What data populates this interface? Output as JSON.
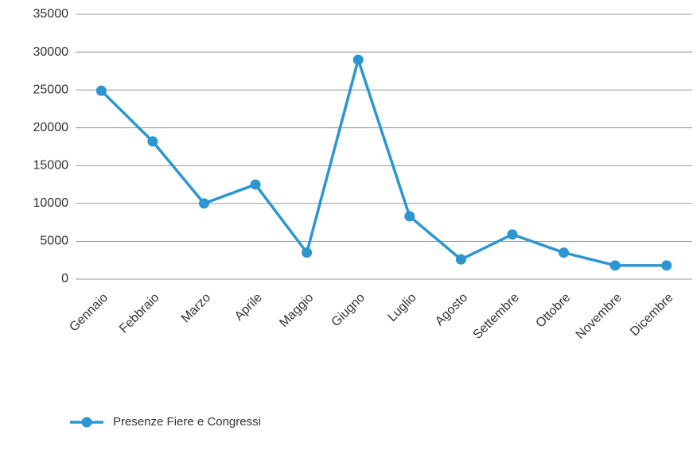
{
  "chart_data": {
    "type": "line",
    "categories": [
      "Gennaio",
      "Febbraio",
      "Marzo",
      "Aprile",
      "Maggio",
      "Giugno",
      "Luglio",
      "Agosto",
      "Settembre",
      "Ottobre",
      "Novembre",
      "Dicembre"
    ],
    "series": [
      {
        "name": "Presenze Fiere e Congressi",
        "color": "#2b96d2",
        "values": [
          24900,
          18200,
          10000,
          12500,
          3500,
          29000,
          8300,
          2600,
          5900,
          3500,
          1800,
          1800
        ]
      }
    ],
    "ylim": [
      0,
      35000
    ],
    "yticks": [
      0,
      5000,
      10000,
      15000,
      20000,
      25000,
      30000,
      35000
    ],
    "grid": true,
    "legend": "bottom"
  }
}
